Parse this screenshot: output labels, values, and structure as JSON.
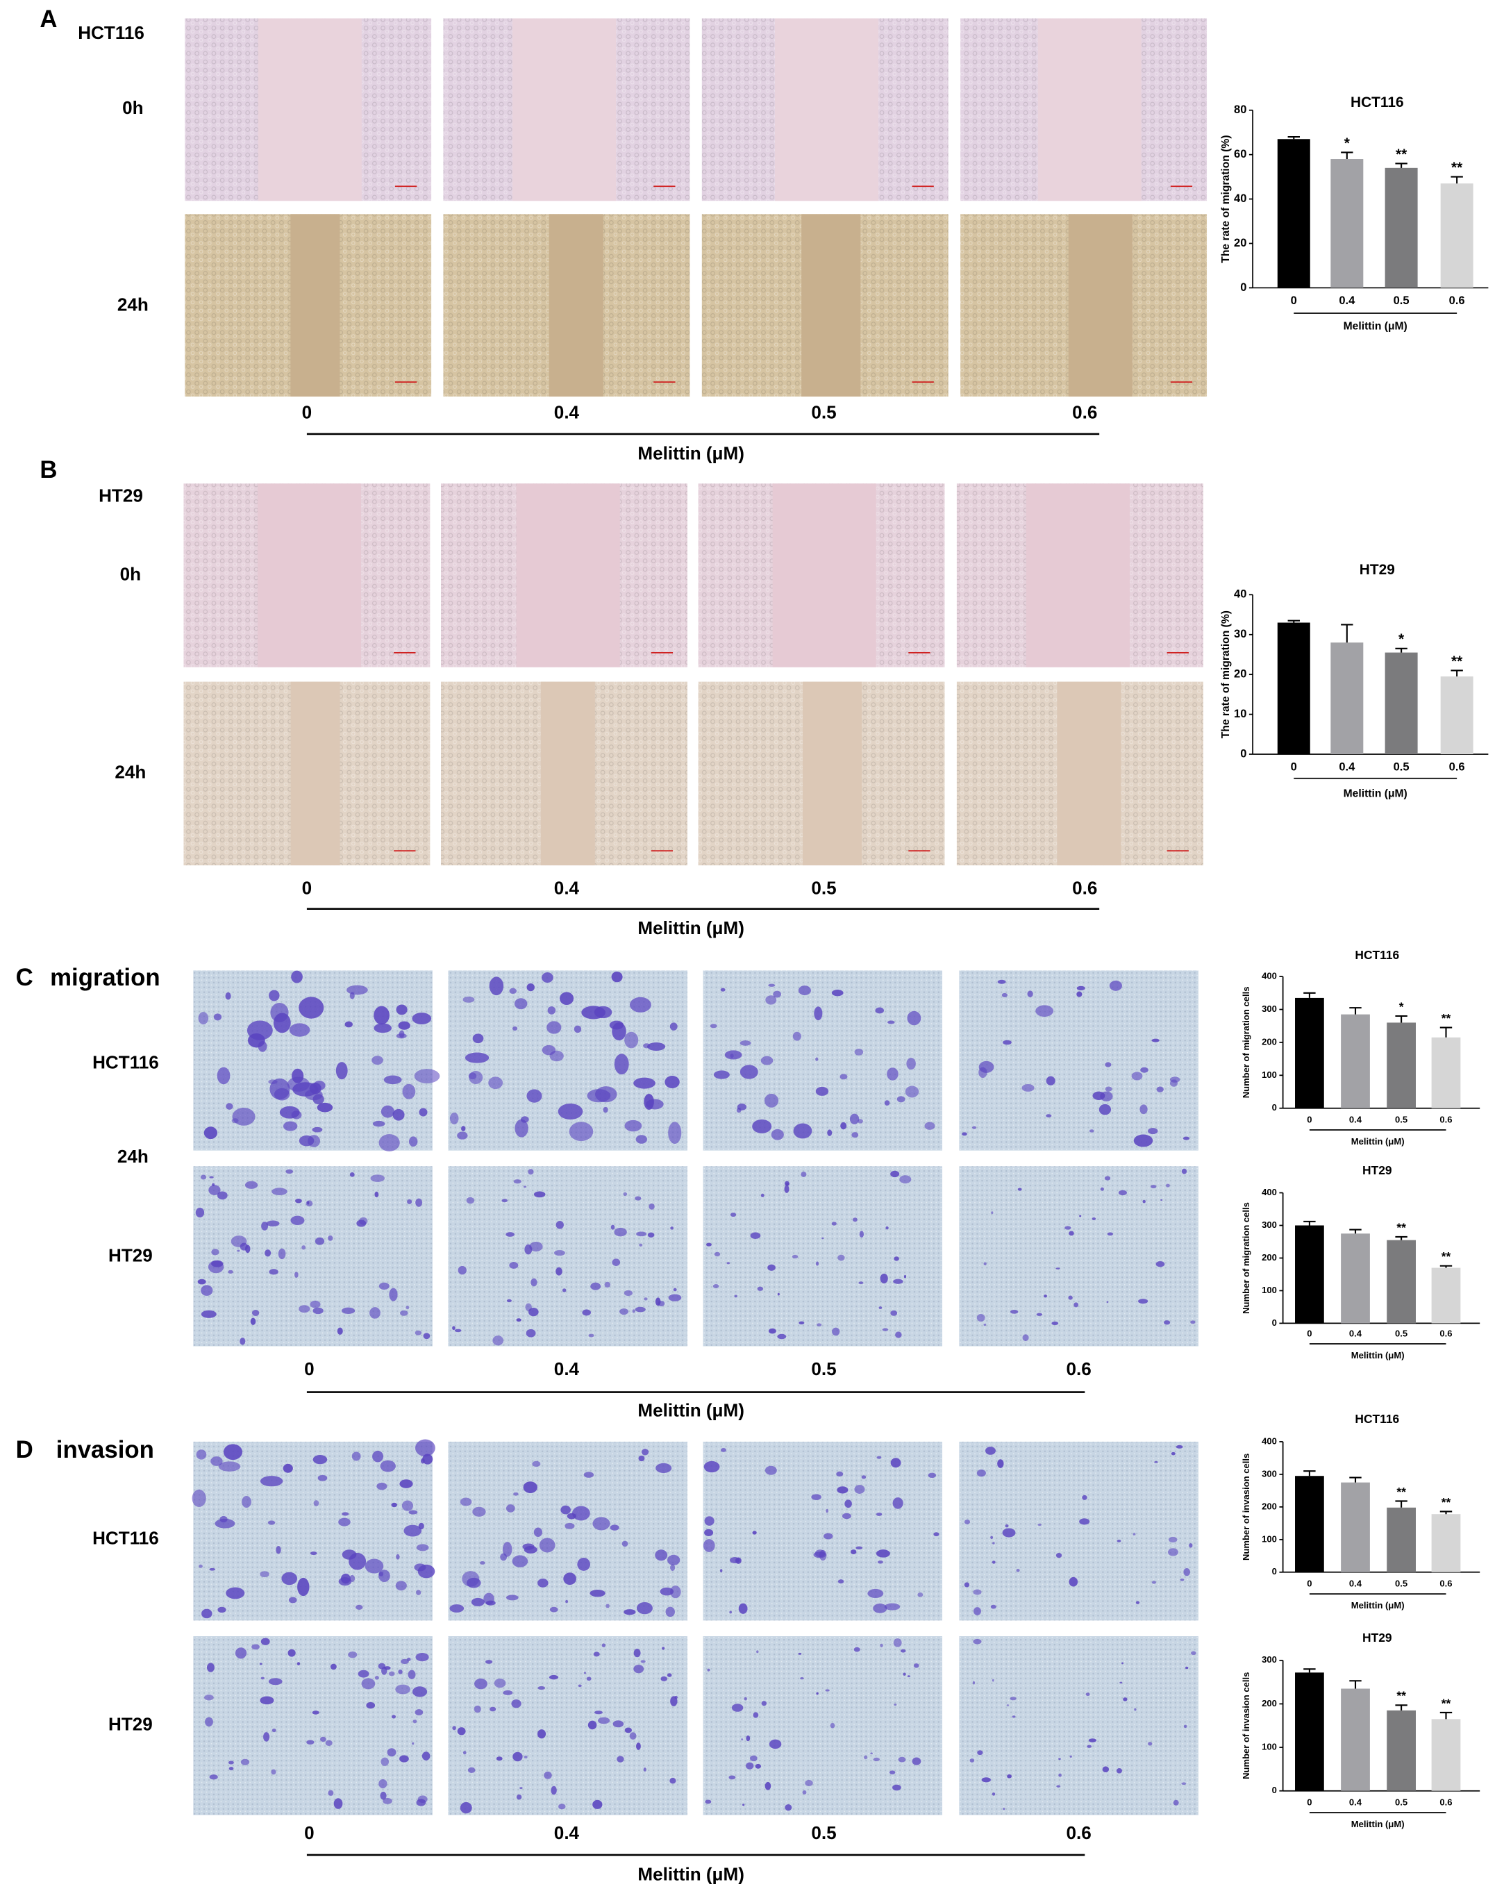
{
  "panels": [
    {
      "letter": "A",
      "cell_line": "HCT116",
      "rows": [
        "0h",
        "24h"
      ],
      "doses": [
        "0",
        "0.4",
        "0.5",
        "0.6"
      ],
      "dose_label": "Melittin (μM)"
    },
    {
      "letter": "B",
      "cell_line": "HT29",
      "rows": [
        "0h",
        "24h"
      ],
      "doses": [
        "0",
        "0.4",
        "0.5",
        "0.6"
      ],
      "dose_label": "Melittin (μM)"
    },
    {
      "letter": "C",
      "assay": "migration",
      "time": "24h",
      "rows": [
        "HCT116",
        "HT29"
      ],
      "doses": [
        "0",
        "0.4",
        "0.5",
        "0.6"
      ],
      "dose_label": "Melittin (μM)"
    },
    {
      "letter": "D",
      "assay": "invasion",
      "rows": [
        "HCT116",
        "HT29"
      ],
      "doses": [
        "0",
        "0.4",
        "0.5",
        "0.6"
      ],
      "dose_label": "Melittin (μM)"
    }
  ],
  "chart_data": [
    {
      "type": "bar",
      "title": "HCT116",
      "ylabel": "The rate of migration (%)",
      "xlabel": "Melittin (μM)",
      "categories": [
        "0",
        "0.4",
        "0.5",
        "0.6"
      ],
      "values": [
        67,
        58,
        54,
        47
      ],
      "errors": [
        1,
        3,
        2,
        3
      ],
      "annotations": [
        null,
        "*",
        "**",
        "**"
      ],
      "colors": [
        "#000000",
        "#a2a2a6",
        "#7b7b7d",
        "#d6d6d6"
      ],
      "ylim": [
        0,
        80
      ],
      "yticks": [
        0,
        20,
        40,
        60,
        80
      ]
    },
    {
      "type": "bar",
      "title": "HT29",
      "ylabel": "The rate of migration (%)",
      "xlabel": "Melittin (μM)",
      "categories": [
        "0",
        "0.4",
        "0.5",
        "0.6"
      ],
      "values": [
        33,
        28,
        25.5,
        19.5
      ],
      "errors": [
        0.5,
        4.5,
        1,
        1.5
      ],
      "annotations": [
        null,
        null,
        "*",
        "**"
      ],
      "colors": [
        "#000000",
        "#a2a2a6",
        "#7b7b7d",
        "#d6d6d6"
      ],
      "ylim": [
        0,
        40
      ],
      "yticks": [
        0,
        10,
        20,
        30,
        40
      ]
    },
    {
      "type": "bar",
      "title": "HCT116",
      "ylabel": "Number of migration cells",
      "xlabel": "Melittin (μM)",
      "categories": [
        "0",
        "0.4",
        "0.5",
        "0.6"
      ],
      "values": [
        335,
        285,
        260,
        215
      ],
      "errors": [
        15,
        20,
        20,
        30
      ],
      "annotations": [
        null,
        null,
        "*",
        "**"
      ],
      "colors": [
        "#000000",
        "#a2a2a6",
        "#7b7b7d",
        "#d6d6d6"
      ],
      "ylim": [
        0,
        400
      ],
      "yticks": [
        0,
        100,
        200,
        300,
        400
      ]
    },
    {
      "type": "bar",
      "title": "HT29",
      "ylabel": "Number of migration cells",
      "xlabel": "Melittin (μM)",
      "categories": [
        "0",
        "0.4",
        "0.5",
        "0.6"
      ],
      "values": [
        300,
        275,
        255,
        170
      ],
      "errors": [
        12,
        12,
        10,
        6
      ],
      "annotations": [
        null,
        null,
        "**",
        "**"
      ],
      "colors": [
        "#000000",
        "#a2a2a6",
        "#7b7b7d",
        "#d6d6d6"
      ],
      "ylim": [
        0,
        400
      ],
      "yticks": [
        0,
        100,
        200,
        300,
        400
      ]
    },
    {
      "type": "bar",
      "title": "HCT116",
      "ylabel": "Number of invasion cells",
      "xlabel": "Melittin (μM)",
      "categories": [
        "0",
        "0.4",
        "0.5",
        "0.6"
      ],
      "values": [
        295,
        275,
        198,
        178
      ],
      "errors": [
        15,
        15,
        20,
        8
      ],
      "annotations": [
        null,
        null,
        "**",
        "**"
      ],
      "colors": [
        "#000000",
        "#a2a2a6",
        "#7b7b7d",
        "#d6d6d6"
      ],
      "ylim": [
        0,
        400
      ],
      "yticks": [
        0,
        100,
        200,
        300,
        400
      ]
    },
    {
      "type": "bar",
      "title": "HT29",
      "ylabel": "Number of invasion cells",
      "xlabel": "Melittin (μM)",
      "categories": [
        "0",
        "0.4",
        "0.5",
        "0.6"
      ],
      "values": [
        272,
        235,
        185,
        165
      ],
      "errors": [
        8,
        18,
        12,
        15
      ],
      "annotations": [
        null,
        null,
        "**",
        "**"
      ],
      "colors": [
        "#000000",
        "#a2a2a6",
        "#7b7b7d",
        "#d6d6d6"
      ],
      "ylim": [
        0,
        300
      ],
      "yticks": [
        0,
        100,
        200,
        300
      ]
    }
  ]
}
